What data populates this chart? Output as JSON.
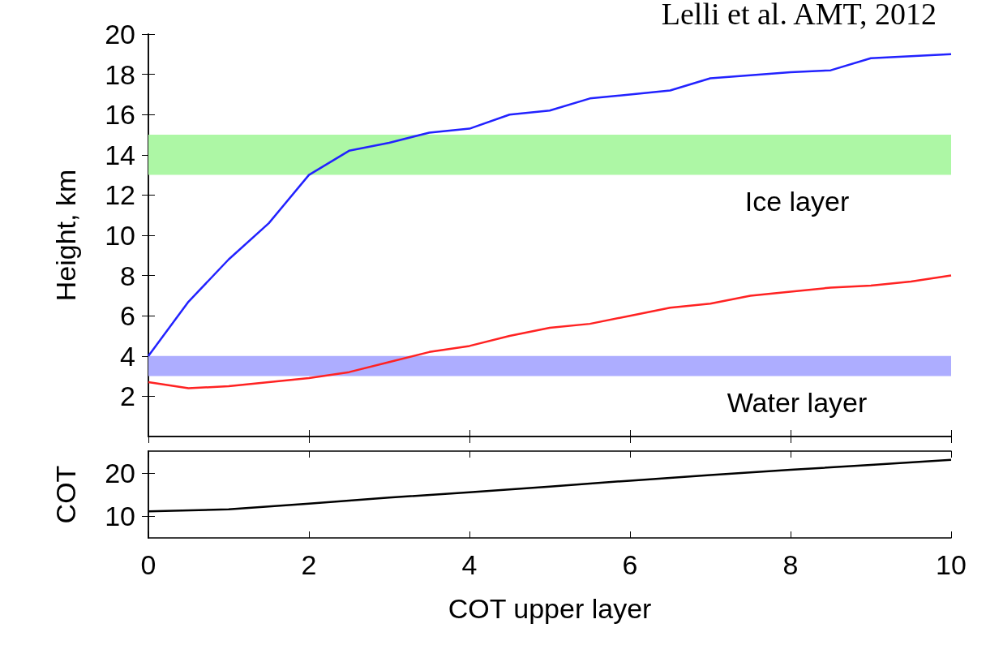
{
  "chart_data": [
    {
      "type": "line",
      "annotations": [
        "Lelli et al. AMT, 2012"
      ],
      "ylabel": "Height, km",
      "x": [
        0,
        0.5,
        1,
        1.5,
        2,
        2.5,
        3,
        3.5,
        4,
        4.5,
        5,
        5.5,
        6,
        6.5,
        7,
        7.5,
        8,
        8.5,
        9,
        9.5,
        10
      ],
      "series": [
        {
          "color": "#2222ff",
          "values": [
            4.0,
            6.7,
            8.8,
            10.6,
            13.0,
            14.2,
            14.6,
            15.1,
            15.3,
            16.0,
            16.2,
            16.8,
            17.0,
            17.2,
            17.8,
            17.95,
            18.1,
            18.2,
            18.8,
            18.9,
            19.0
          ]
        },
        {
          "color": "#ff2222",
          "values": [
            2.7,
            2.4,
            2.5,
            2.7,
            2.9,
            3.2,
            3.7,
            4.2,
            4.5,
            5.0,
            5.4,
            5.6,
            6.0,
            6.4,
            6.6,
            7.0,
            7.2,
            7.4,
            7.5,
            7.7,
            8.0
          ]
        }
      ],
      "bands": [
        {
          "axis": "y",
          "from": 13,
          "to": 15,
          "label": "Ice layer",
          "color": "#adf7a5"
        },
        {
          "axis": "y",
          "from": 3,
          "to": 4,
          "label": "Water layer",
          "color": "#adadff"
        }
      ],
      "xlim": [
        0,
        10
      ],
      "xticks": [
        0,
        2,
        4,
        6,
        8,
        10
      ],
      "ylim": [
        0,
        20
      ],
      "yticks": [
        2,
        4,
        6,
        8,
        10,
        12,
        14,
        16,
        18,
        20
      ],
      "tick_labels": "y",
      "grid": false,
      "marker": "none",
      "line_style": "solid"
    },
    {
      "type": "line",
      "xlabel": "COT upper layer",
      "ylabel": "COT",
      "x": [
        0,
        1,
        2,
        3,
        4,
        5,
        6,
        7,
        8,
        9,
        10
      ],
      "series": [
        {
          "color": "#000000",
          "values": [
            11.1,
            11.6,
            12.9,
            14.3,
            15.5,
            16.8,
            18.2,
            19.5,
            20.7,
            21.8,
            23.0
          ]
        }
      ],
      "xlim": [
        0,
        10
      ],
      "xticks": [
        0,
        2,
        4,
        6,
        8,
        10
      ],
      "ylim": [
        5,
        25
      ],
      "yticks": [
        10,
        20
      ],
      "grid": false,
      "marker": "none",
      "line_style": "solid"
    }
  ]
}
